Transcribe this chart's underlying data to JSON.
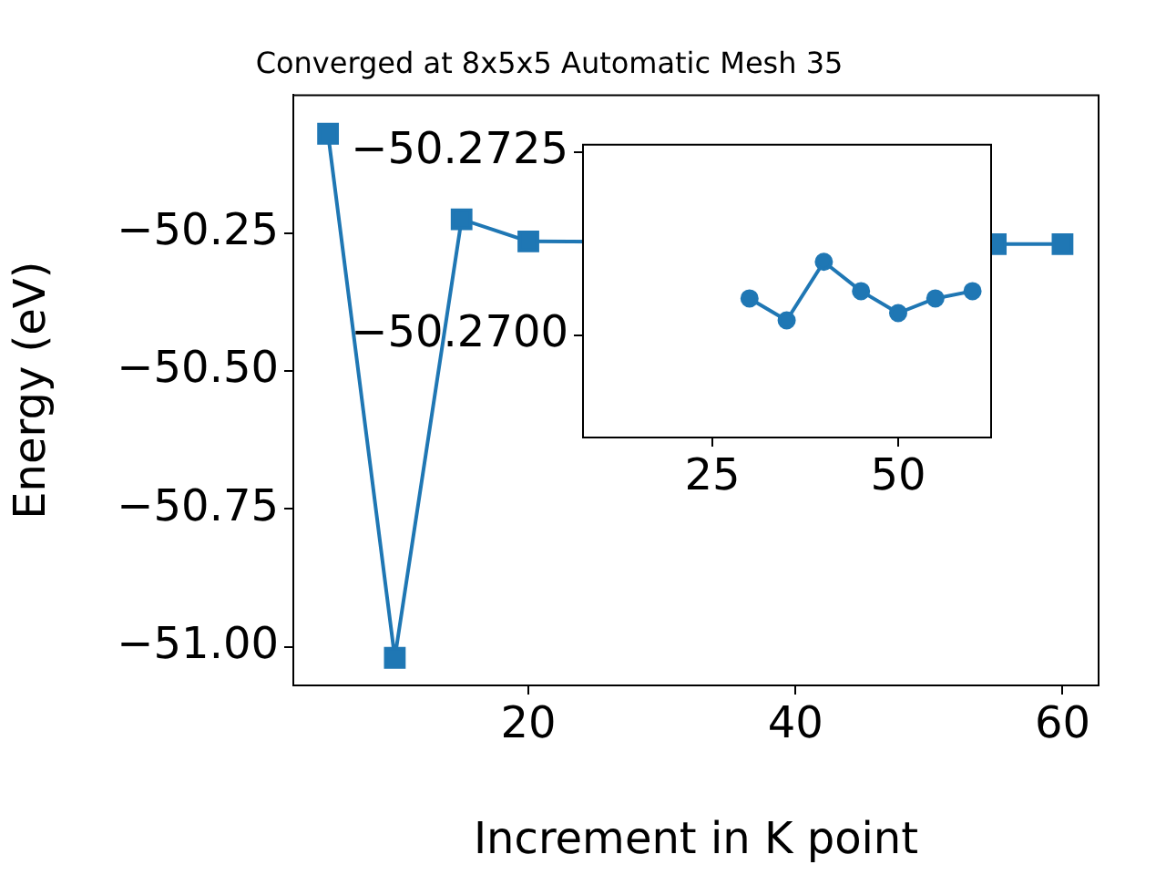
{
  "chart_data": [
    {
      "type": "line",
      "title": "Converged at 8x5x5 Automatic Mesh 35",
      "xlabel": "Increment in K point",
      "ylabel": "Energy (eV)",
      "x": [
        5,
        10,
        15,
        20,
        25,
        30,
        35,
        40,
        45,
        50,
        55,
        60
      ],
      "series": [
        {
          "color": "#1f77b4",
          "values": [
            -50.07,
            -51.02,
            -50.225,
            -50.265,
            null,
            null,
            null,
            null,
            null,
            null,
            -50.27,
            -50.27
          ]
        }
      ],
      "marker": "square",
      "grid": false,
      "legend": false,
      "xlim": [
        2.4,
        62.7
      ],
      "xticks": [
        20,
        40,
        60
      ],
      "ylim": [
        -51.07,
        -50.0
      ],
      "yticks": [
        {
          "value": -51.0,
          "label": "−51.00"
        },
        {
          "value": -50.75,
          "label": "−50.75"
        },
        {
          "value": -50.5,
          "label": "−50.50"
        },
        {
          "value": -50.25,
          "label": "−50.25"
        }
      ]
    },
    {
      "type": "line",
      "x": [
        30,
        35,
        40,
        45,
        50,
        55,
        60
      ],
      "series": [
        {
          "color": "#1f77b4",
          "values": [
            -50.2705,
            -50.2702,
            -50.271,
            -50.2706,
            -50.2703,
            -50.2705,
            -50.2706
          ]
        }
      ],
      "marker": "circle",
      "grid": false,
      "legend": false,
      "xlim": [
        7.6,
        62.5
      ],
      "xticks": [
        25,
        50
      ],
      "ylim": [
        -50.2686,
        -50.2726
      ],
      "yticks": [
        {
          "value": -50.2725,
          "label": "−50.2725"
        },
        {
          "value": -50.27,
          "label": "−50.2700"
        }
      ]
    }
  ]
}
